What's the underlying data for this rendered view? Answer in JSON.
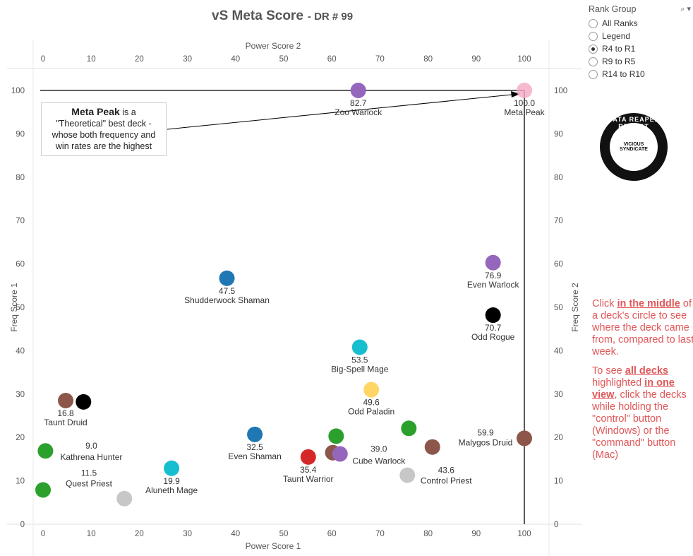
{
  "title": "vS Meta Score",
  "subtitle": "- DR # 99",
  "filter": {
    "label": "Rank Group",
    "icons": "⌕ ▾",
    "options": [
      {
        "label": "All Ranks",
        "selected": false
      },
      {
        "label": "Legend",
        "selected": false
      },
      {
        "label": "R4 to R1",
        "selected": true
      },
      {
        "label": "R9 to R5",
        "selected": false
      },
      {
        "label": "R14 to R10",
        "selected": false
      }
    ]
  },
  "logo": {
    "ring": "DATA REAPER REPORT",
    "inner": "VICIOUS SYNDICATE"
  },
  "callout": {
    "bold": "Meta Peak",
    "text1": " is a",
    "text2": "\"Theoretical\" best deck -",
    "text3": "whose both frequency and",
    "text4": "win rates are the highest"
  },
  "help": {
    "p1_a": "Click ",
    "p1_b": "in the middle",
    "p1_c": " of a deck's circle to see where the deck came from, compared to last week.",
    "p2_a": "To see ",
    "p2_b": "all decks ",
    "p2_c": "highlighted ",
    "p2_d": "in one view",
    "p2_e": ", click the decks while holding the \"control\" button (Windows) or the \"command\" button (Mac)"
  },
  "chart_data": {
    "type": "scatter",
    "xlabel_bottom": "Power Score 1",
    "xlabel_top": "Power Score 2",
    "ylabel_left": "Freq Score 1",
    "ylabel_right": "Freq Score 2",
    "xlim": [
      0,
      100
    ],
    "ylim": [
      0,
      100
    ],
    "x_ticks": [
      0,
      10,
      20,
      30,
      40,
      50,
      60,
      70,
      80,
      90,
      100
    ],
    "y_ticks": [
      0,
      10,
      20,
      30,
      40,
      50,
      60,
      70,
      80,
      90,
      100
    ],
    "reference_lines": {
      "y": 100,
      "x": 100
    },
    "points": [
      {
        "name": "Meta Peak",
        "score": "100.0",
        "x": 100,
        "y": 100,
        "color": "#f4a7c3",
        "opacity": 0.8,
        "labeled": true
      },
      {
        "name": "Zoo Warlock",
        "score": "82.7",
        "x": 65.5,
        "y": 100,
        "color": "#9467bd",
        "labeled": true
      },
      {
        "name": "Shudderwock Shaman",
        "score": "47.5",
        "x": 38.2,
        "y": 56.7,
        "color": "#1f77b4",
        "labeled": true
      },
      {
        "name": "Even Warlock",
        "score": "76.9",
        "x": 93.5,
        "y": 60.3,
        "color": "#9467bd",
        "labeled": true
      },
      {
        "name": "Odd Rogue",
        "score": "70.7",
        "x": 93.5,
        "y": 48.2,
        "color": "#000000",
        "labeled": true
      },
      {
        "name": "Big-Spell Mage",
        "score": "53.5",
        "x": 65.8,
        "y": 40.8,
        "color": "#17becf",
        "labeled": true
      },
      {
        "name": "Odd Paladin",
        "score": "49.6",
        "x": 68.2,
        "y": 31.0,
        "color": "#ffd666",
        "labeled": true
      },
      {
        "name": "Taunt Druid",
        "score": "16.8",
        "x": 4.7,
        "y": 28.5,
        "color": "#8c564b",
        "labeled": true
      },
      {
        "name": "",
        "score": "",
        "x": 8.4,
        "y": 28.2,
        "color": "#000000",
        "labeled": false
      },
      {
        "name": "Kathrena Hunter",
        "score": "9.0",
        "x": 0.5,
        "y": 16.9,
        "color": "#2ca02c",
        "labeled": true
      },
      {
        "name": "Quest Priest",
        "score": "11.5",
        "x": 0,
        "y": 7.9,
        "color": "#2ca02c",
        "labeled": true
      },
      {
        "name": "",
        "score": "",
        "x": 16.9,
        "y": 5.9,
        "color": "#c7c7c7",
        "labeled": false
      },
      {
        "name": "Aluneth Mage",
        "score": "19.9",
        "x": 26.7,
        "y": 12.9,
        "color": "#17becf",
        "labeled": true
      },
      {
        "name": "Even Shaman",
        "score": "32.5",
        "x": 44.0,
        "y": 20.7,
        "color": "#1f77b4",
        "labeled": true
      },
      {
        "name": "Taunt Warrior",
        "score": "35.4",
        "x": 55.1,
        "y": 15.5,
        "color": "#d62728",
        "labeled": true
      },
      {
        "name": "",
        "score": "",
        "x": 60.9,
        "y": 20.3,
        "color": "#2ca02c",
        "labeled": false
      },
      {
        "name": "",
        "score": "",
        "x": 60.2,
        "y": 16.5,
        "color": "#8c564b",
        "labeled": false
      },
      {
        "name": "Cube Warlock",
        "score": "39.0",
        "x": 61.7,
        "y": 16.2,
        "color": "#9467bd",
        "labeled": true
      },
      {
        "name": "",
        "score": "",
        "x": 76.0,
        "y": 22.1,
        "color": "#2ca02c",
        "labeled": false
      },
      {
        "name": "Control Priest",
        "score": "43.6",
        "x": 75.7,
        "y": 11.3,
        "color": "#c7c7c7",
        "labeled": true
      },
      {
        "name": "",
        "score": "",
        "x": 80.9,
        "y": 17.8,
        "color": "#8c564b",
        "labeled": false
      },
      {
        "name": "Malygos Druid",
        "score": "59.9",
        "x": 100,
        "y": 19.8,
        "color": "#8c564b",
        "labeled": true
      }
    ]
  }
}
